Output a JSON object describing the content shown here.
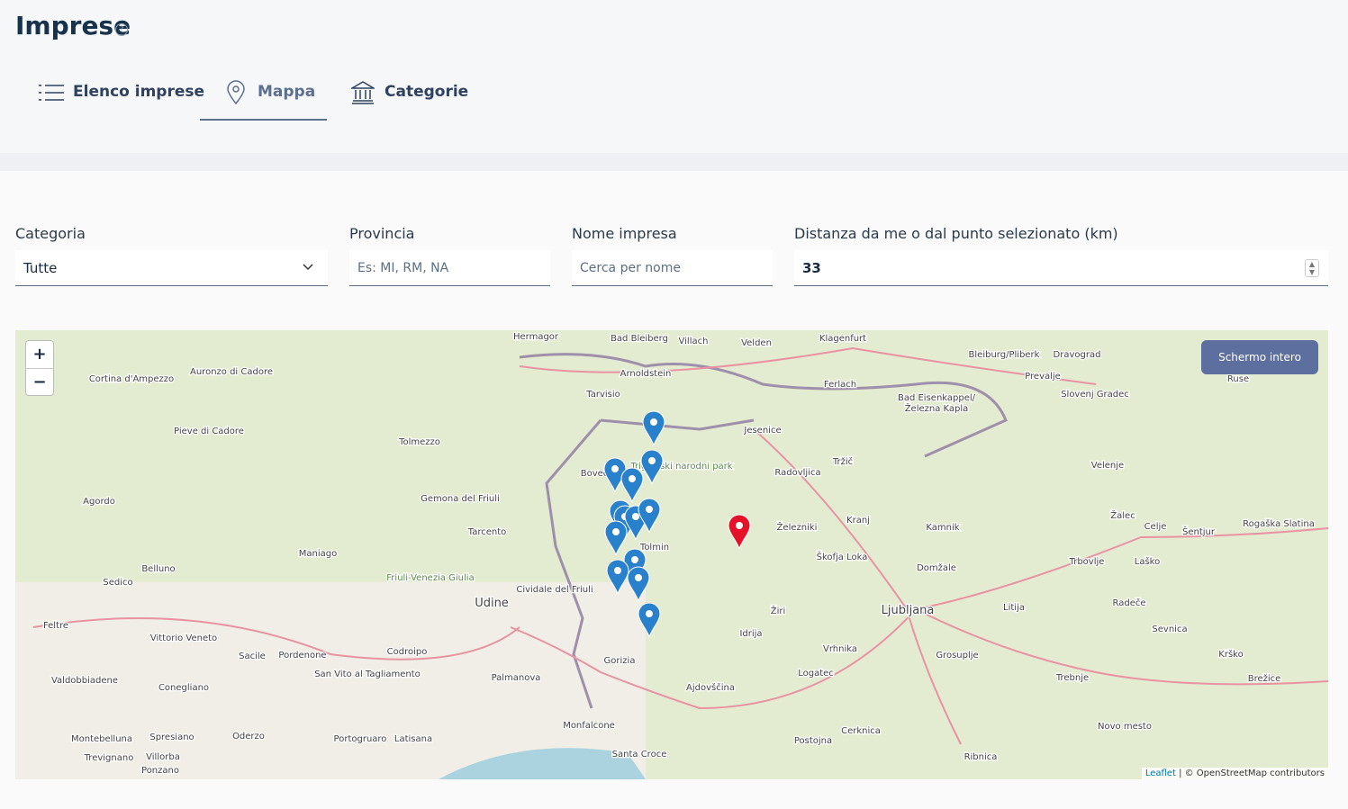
{
  "header": {
    "title": "Imprese"
  },
  "tabs": [
    "Elenco imprese",
    "Mappa",
    "Categorie"
  ],
  "filters": [
    {
      "label": "Categoria",
      "value": "Tutte"
    },
    {
      "label": "Provincia",
      "placeholder": "Es: MI, RM, NA"
    },
    {
      "label": "Nome impresa",
      "placeholder": "Cerca per nome"
    },
    {
      "label": "Distanza da me o dal punto selezionato (km)",
      "value": "33"
    }
  ],
  "map": {
    "zoom_in": "+",
    "zoom_out": "−",
    "fullscreen": "Schermo intero",
    "attribution_link": "Leaflet",
    "attribution": "| © OpenStreetMap contributors",
    "places": [
      "Hermagor",
      "Bad Bleiberg",
      "Villach",
      "Velden",
      "Klagenfurt",
      "Bleiburg/Pliberk",
      "Dravograd",
      "Prevalje",
      "Ruse",
      "Arnoldstein",
      "Tarvisio",
      "Ferlach",
      "Bad Eisenkappel/",
      "Železna Kapla",
      "Slovenj Gradec",
      "Cortina d'Ampezzo",
      "Pieve di Cadore",
      "Tolmezzo",
      "Jesenice",
      "Tržič",
      "Radovljica",
      "Velenje",
      "Bovec",
      "Triglavski narodni park",
      "Agordo",
      "Tarcento",
      "Železniki",
      "Kranj",
      "Kamnik",
      "Žalec",
      "Celje",
      "Šentjur",
      "Rogaška Slatina",
      "Maniago",
      "Tolmin",
      "Škofja Loka",
      "Domžale",
      "Trbovlje",
      "Laško",
      "Belluno",
      "Sedico",
      "Friuli-Venezia Giulia",
      "Cividale del Friuli",
      "Udine",
      "Žiri",
      "Ljubljana",
      "Litija",
      "Radeče",
      "Feltre",
      "Vittorio Veneto",
      "Idrija",
      "Sevnica",
      "Sacile",
      "Pordenone",
      "Codroipo",
      "Vrhnika",
      "Grosuplje",
      "Krško",
      "Valdobbiadene",
      "Conegliano",
      "San Vito al Tagliamento",
      "Gorizia",
      "Palmanova",
      "Logatec",
      "Trebnje",
      "Brežice",
      "Ajdovščina",
      "Monfalcone",
      "Novo mesto",
      "Montebelluna",
      "Spresiano",
      "Oderzo",
      "Portogruaro",
      "Latisana",
      "Postojna",
      "Cerknica",
      "Santa Croce",
      "Ribnica",
      "Trevignano",
      "Villorba",
      "Ponzano",
      "Gemona del Friuli",
      "Auronzo di Cadore"
    ]
  }
}
